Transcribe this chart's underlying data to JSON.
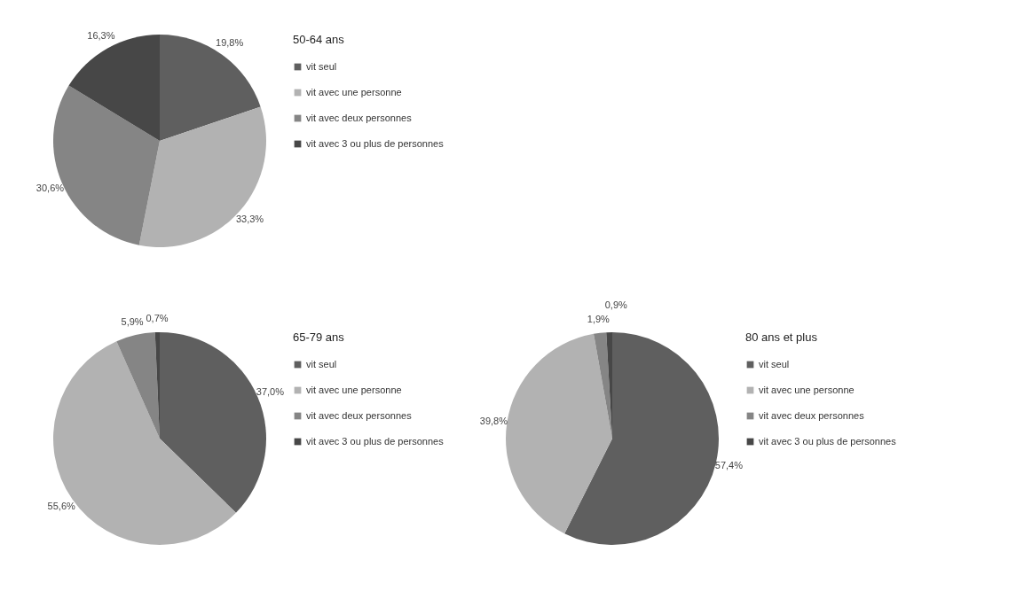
{
  "chart_data": [
    {
      "type": "pie",
      "title": "50-64 ans",
      "categories": [
        "vit seul",
        "vit avec une personne",
        "vit avec deux personnes",
        "vit avec 3 ou plus de personnes"
      ],
      "values": [
        19.8,
        33.3,
        30.6,
        16.3
      ],
      "colors": [
        "#5f5f5f",
        "#b2b2b2",
        "#858585",
        "#474747"
      ],
      "value_labels": [
        "19,8%",
        "33,3%",
        "30,6%",
        "16,3%"
      ],
      "legend": "right"
    },
    {
      "type": "pie",
      "title": "65-79 ans",
      "categories": [
        "vit seul",
        "vit avec une personne",
        "vit avec deux personnes",
        "vit avec 3 ou plus de personnes"
      ],
      "values": [
        37.0,
        55.6,
        5.9,
        0.7
      ],
      "colors": [
        "#5f5f5f",
        "#b2b2b2",
        "#858585",
        "#474747"
      ],
      "value_labels": [
        "37,0%",
        "55,6%",
        "5,9%",
        "0,7%"
      ],
      "legend": "right"
    },
    {
      "type": "pie",
      "title": "80 ans et plus",
      "categories": [
        "vit seul",
        "vit avec une personne",
        "vit avec deux personnes",
        "vit avec 3 ou plus de personnes"
      ],
      "values": [
        57.4,
        39.8,
        1.9,
        0.9
      ],
      "colors": [
        "#5f5f5f",
        "#b2b2b2",
        "#858585",
        "#474747"
      ],
      "value_labels": [
        "57,4%",
        "39,8%",
        "1,9%",
        "0,9%"
      ],
      "legend": "right"
    }
  ]
}
